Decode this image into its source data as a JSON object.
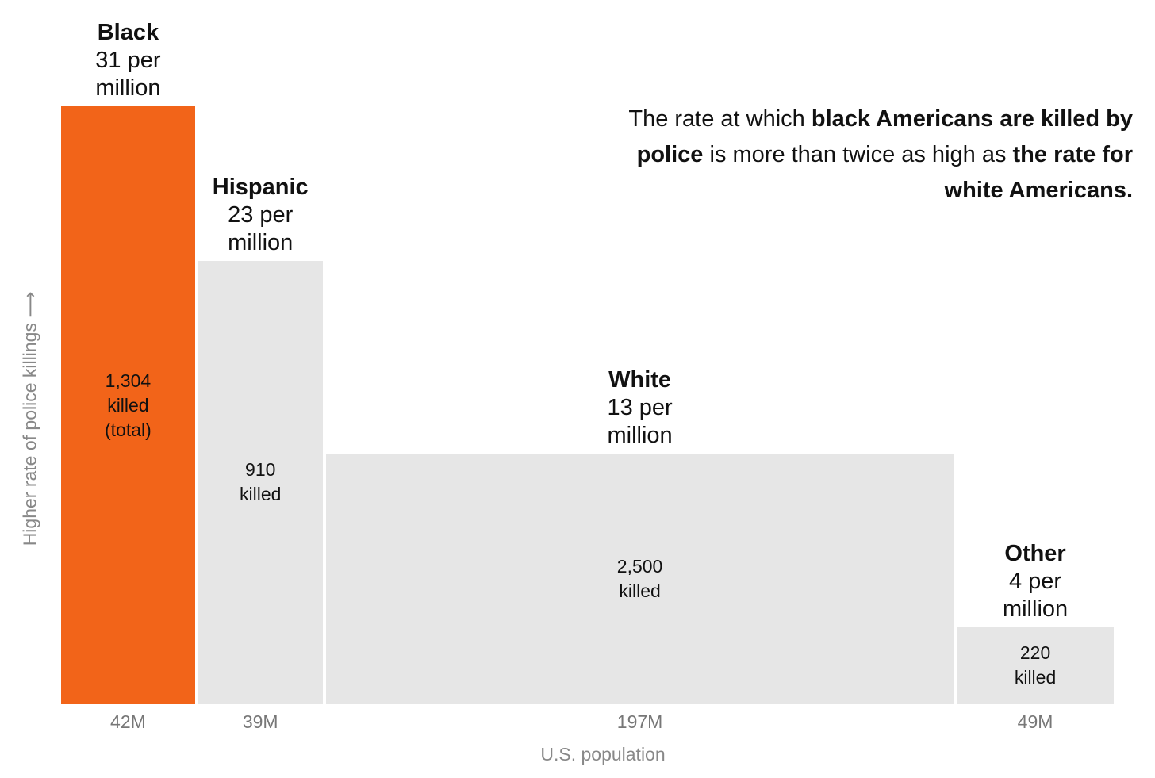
{
  "headline": {
    "part1": "The rate at which ",
    "bold1": "black Americans are killed by police",
    "part2": " is more than twice as high as ",
    "bold2": "the rate for white Americans."
  },
  "chart_data": {
    "type": "bar",
    "title": "",
    "xlabel": "U.S. population",
    "ylabel": "Higher rate of police killings ⟶",
    "categories": [
      "Black",
      "Hispanic",
      "White",
      "Other"
    ],
    "series": [
      {
        "values": [
          31,
          23,
          13,
          4
        ]
      }
    ],
    "groups": [
      {
        "name": "Black",
        "rate_text": "31 per million",
        "rate": 31,
        "killed_lines": [
          "1,304",
          "killed",
          "(total)"
        ],
        "killed": 1304,
        "population_label": "42M",
        "population": 42
      },
      {
        "name": "Hispanic",
        "rate_text": "23 per million",
        "rate": 23,
        "killed_lines": [
          "910",
          "killed"
        ],
        "killed": 910,
        "population_label": "39M",
        "population": 39
      },
      {
        "name": "White",
        "rate_text": "13 per million",
        "rate": 13,
        "killed_lines": [
          "2,500",
          "killed"
        ],
        "killed": 2500,
        "population_label": "197M",
        "population": 197
      },
      {
        "name": "Other",
        "rate_text": "4 per million",
        "rate": 4,
        "killed_lines": [
          "220",
          "killed"
        ],
        "killed": 220,
        "population_label": "49M",
        "population": 49
      }
    ],
    "colors": {
      "highlight": "#f26419",
      "default": "#e6e6e6"
    },
    "highlight": "Black",
    "ylim": [
      0,
      31
    ],
    "grid": false
  }
}
